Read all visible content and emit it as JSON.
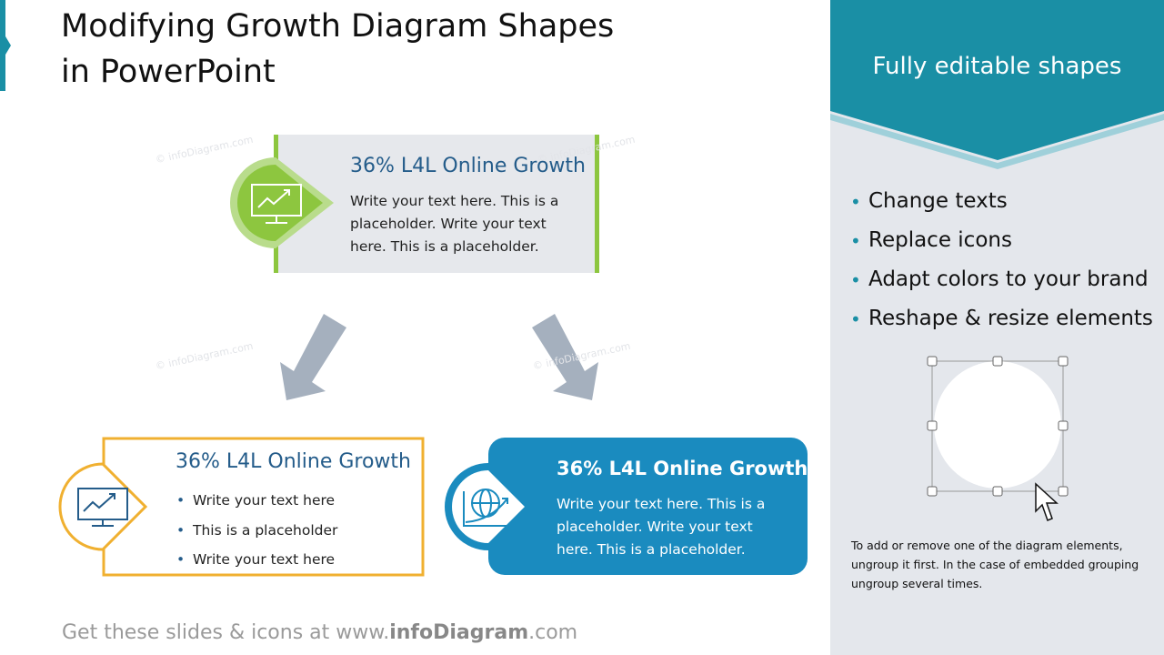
{
  "title": "Modifying Growth Diagram Shapes in PowerPoint",
  "watermark": "© infoDiagram.com",
  "boxes": [
    {
      "heading": "36% L4L Online Growth",
      "body": "Write your text here. This is a placeholder. Write your text here. This is a placeholder."
    },
    {
      "heading": "36% L4L Online Growth",
      "bullets": [
        "Write your text here",
        "This is a placeholder",
        "Write your text here"
      ]
    },
    {
      "heading": "36% L4L Online Growth",
      "body": "Write your text here. This is a placeholder. Write your text here. This is a placeholder."
    }
  ],
  "sidebar": {
    "header": "Fully editable shapes",
    "bullets": [
      "Change texts",
      "Replace icons",
      "Adapt colors to your brand",
      "Reshape & resize elements"
    ],
    "note": "To add or remove one of the diagram elements, ungroup it first. In the case of embedded grouping ungroup several times."
  },
  "footer": {
    "prefix": "Get these slides & icons at www.",
    "brand": "infoDiagram",
    "suffix": ".com"
  }
}
